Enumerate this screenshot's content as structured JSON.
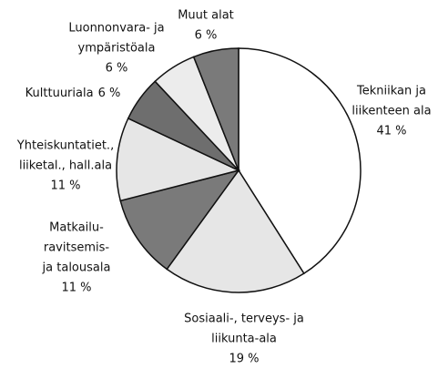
{
  "chart_data": {
    "type": "pie",
    "categories": [
      [
        "Tekniikan ja",
        "liikenteen ala"
      ],
      [
        "Sosiaali-, terveys- ja",
        "liikunta-ala"
      ],
      [
        "Matkailu-",
        "ravitsemis-",
        "ja talousala"
      ],
      [
        "Yhteiskuntatiet.,",
        "liiketal., hall.ala"
      ],
      [
        "Kulttuuriala"
      ],
      [
        "Luonnonvara- ja",
        "ympäristöala"
      ],
      [
        "Muut alat"
      ]
    ],
    "values": [
      41,
      19,
      11,
      11,
      6,
      6,
      6
    ],
    "value_labels": [
      "41 %",
      "19 %",
      "11 %",
      "11 %",
      "6 %",
      "6 %",
      "6 %"
    ],
    "colors": [
      "#ffffff",
      "#e6e6e6",
      "#7a7a7a",
      "#e6e6e6",
      "#6e6e6e",
      "#ececec",
      "#7a7a7a"
    ]
  }
}
